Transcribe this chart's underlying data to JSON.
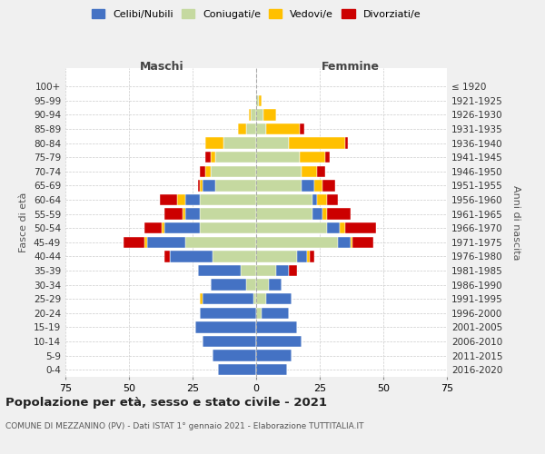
{
  "age_groups": [
    "0-4",
    "5-9",
    "10-14",
    "15-19",
    "20-24",
    "25-29",
    "30-34",
    "35-39",
    "40-44",
    "45-49",
    "50-54",
    "55-59",
    "60-64",
    "65-69",
    "70-74",
    "75-79",
    "80-84",
    "85-89",
    "90-94",
    "95-99",
    "100+"
  ],
  "birth_years": [
    "2016-2020",
    "2011-2015",
    "2006-2010",
    "2001-2005",
    "1996-2000",
    "1991-1995",
    "1986-1990",
    "1981-1985",
    "1976-1980",
    "1971-1975",
    "1966-1970",
    "1961-1965",
    "1956-1960",
    "1951-1955",
    "1946-1950",
    "1941-1945",
    "1936-1940",
    "1931-1935",
    "1926-1930",
    "1921-1925",
    "≤ 1920"
  ],
  "maschi": {
    "celibi": [
      15,
      17,
      21,
      24,
      22,
      20,
      14,
      17,
      17,
      15,
      14,
      6,
      6,
      5,
      0,
      0,
      0,
      0,
      0,
      0,
      0
    ],
    "coniugati": [
      0,
      0,
      0,
      0,
      0,
      1,
      4,
      6,
      17,
      28,
      22,
      22,
      22,
      16,
      18,
      16,
      13,
      4,
      2,
      0,
      0
    ],
    "vedovi": [
      0,
      0,
      0,
      0,
      0,
      1,
      0,
      0,
      0,
      1,
      1,
      1,
      3,
      1,
      2,
      2,
      7,
      3,
      1,
      0,
      0
    ],
    "divorziati": [
      0,
      0,
      0,
      0,
      0,
      0,
      0,
      0,
      2,
      8,
      7,
      7,
      7,
      1,
      2,
      2,
      0,
      0,
      0,
      0,
      0
    ]
  },
  "femmine": {
    "nubili": [
      12,
      14,
      18,
      16,
      11,
      10,
      5,
      5,
      4,
      5,
      5,
      4,
      2,
      5,
      0,
      0,
      0,
      0,
      0,
      0,
      0
    ],
    "coniugate": [
      0,
      0,
      0,
      0,
      2,
      4,
      5,
      8,
      16,
      32,
      28,
      22,
      22,
      18,
      18,
      17,
      13,
      4,
      3,
      1,
      0
    ],
    "vedove": [
      0,
      0,
      0,
      0,
      0,
      0,
      0,
      0,
      1,
      1,
      2,
      2,
      4,
      3,
      6,
      10,
      22,
      13,
      5,
      1,
      0
    ],
    "divorziate": [
      0,
      0,
      0,
      0,
      0,
      0,
      0,
      3,
      2,
      8,
      12,
      9,
      4,
      5,
      3,
      2,
      1,
      2,
      0,
      0,
      0
    ]
  },
  "colors": {
    "celibi": "#4472c4",
    "coniugati": "#c5d9a0",
    "vedovi": "#ffc000",
    "divorziati": "#cc0000"
  },
  "xlim": 75,
  "title": "Popolazione per età, sesso e stato civile - 2021",
  "subtitle": "COMUNE DI MEZZANINO (PV) - Dati ISTAT 1° gennaio 2021 - Elaborazione TUTTITALIA.IT",
  "ylabel_left": "Fasce di età",
  "ylabel_right": "Anni di nascita",
  "xlabel_maschi": "Maschi",
  "xlabel_femmine": "Femmine",
  "legend_labels": [
    "Celibi/Nubili",
    "Coniugati/e",
    "Vedovi/e",
    "Divorziati/e"
  ],
  "bg_color": "#f0f0f0",
  "plot_bg": "#ffffff"
}
